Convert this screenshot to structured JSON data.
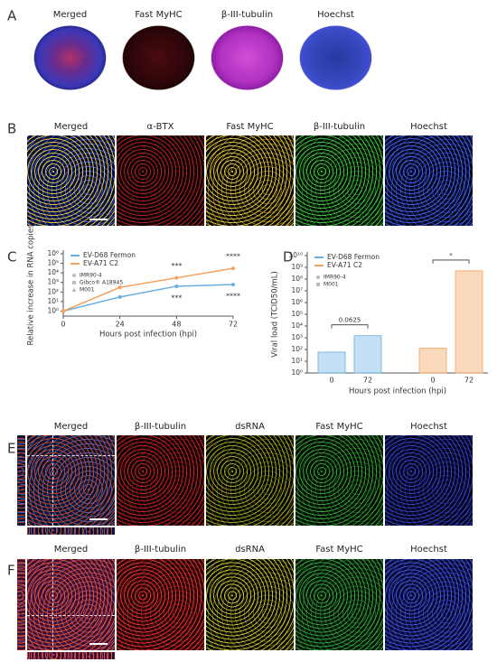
{
  "panels": [
    {
      "letter": "A",
      "images": [
        "Merged",
        "Fast MyHC",
        "β-III-tubulin",
        "Hoechst"
      ]
    },
    {
      "letter": "B",
      "images": [
        "Merged",
        "α-BTX",
        "Fast MyHC",
        "β-III-tubulin",
        "Hoechst"
      ]
    },
    {
      "letter": "C"
    },
    {
      "letter": "D"
    },
    {
      "letter": "E",
      "images": [
        "Merged",
        "β-III-tubulin",
        "dsRNA",
        "Fast MyHC",
        "Hoechst"
      ]
    },
    {
      "letter": "F",
      "images": [
        "Merged",
        "β-III-tubulin",
        "dsRNA",
        "Fast MyHC",
        "Hoechst"
      ]
    }
  ],
  "chart_data": [
    {
      "type": "line",
      "y_label": "Relative increase in RNA copies",
      "x_label": "Hours post infection (hpi)",
      "x": [
        0,
        24,
        48,
        72
      ],
      "xlim": [
        0,
        72
      ],
      "xticks": [
        0,
        24,
        48,
        72
      ],
      "log_y": true,
      "ylim": [
        0.3,
        1000000
      ],
      "yticks": [
        {
          "value": 1,
          "label": "10⁰"
        },
        {
          "value": 10,
          "label": "10¹"
        },
        {
          "value": 100,
          "label": "10²"
        },
        {
          "value": 1000,
          "label": "10³"
        },
        {
          "value": 10000,
          "label": "10⁴"
        },
        {
          "value": 100000,
          "label": "10⁵"
        },
        {
          "value": 1000000,
          "label": "10⁶"
        }
      ],
      "series": [
        {
          "name": "EV-D68 Fermon",
          "color": "#6aaee0",
          "values": [
            1,
            30,
            400,
            600
          ]
        },
        {
          "name": "EV-A71 C2",
          "color": "#f5a15a",
          "values": [
            1,
            300,
            3000,
            30000
          ]
        }
      ],
      "donors": [
        "IMR90-4",
        "Gibco® A18945",
        "M001"
      ],
      "annotations": [
        {
          "text": "***",
          "x": 48,
          "series": 1
        },
        {
          "text": "****",
          "x": 72,
          "series": 1
        },
        {
          "text": "***",
          "x": 48,
          "series": 0
        },
        {
          "text": "****",
          "x": 72,
          "series": 0
        }
      ]
    },
    {
      "type": "bar",
      "y_label": "Viral load (TCID50/mL)",
      "x_label": "Hours post infection (hpi)",
      "categories": [
        "0",
        "72",
        "0",
        "72"
      ],
      "log_y": true,
      "ylim": [
        1,
        10000000000
      ],
      "yticks": [
        {
          "value": 1,
          "label": "10⁰"
        },
        {
          "value": 10,
          "label": "10¹"
        },
        {
          "value": 100,
          "label": "10²"
        },
        {
          "value": 1000,
          "label": "10³"
        },
        {
          "value": 10000,
          "label": "10⁴"
        },
        {
          "value": 100000,
          "label": "10⁵"
        },
        {
          "value": 1000000,
          "label": "10⁶"
        },
        {
          "value": 10000000,
          "label": "10⁷"
        },
        {
          "value": 100000000,
          "label": "10⁸"
        },
        {
          "value": 1000000000,
          "label": "10⁹"
        },
        {
          "value": 10000000000,
          "label": "10¹⁰"
        }
      ],
      "series": [
        {
          "name": "EV-D68 Fermon",
          "color": "#6aaee0",
          "values": [
            60,
            1500,
            null,
            null
          ]
        },
        {
          "name": "EV-A71 C2",
          "color": "#f5a15a",
          "values": [
            null,
            null,
            130,
            500000000
          ]
        }
      ],
      "donors": [
        "IMR90-4",
        "M001"
      ],
      "annotations": [
        {
          "text": "0.0625",
          "from": 0,
          "to": 1
        },
        {
          "text": "*",
          "from": 2,
          "to": 3
        }
      ]
    }
  ]
}
